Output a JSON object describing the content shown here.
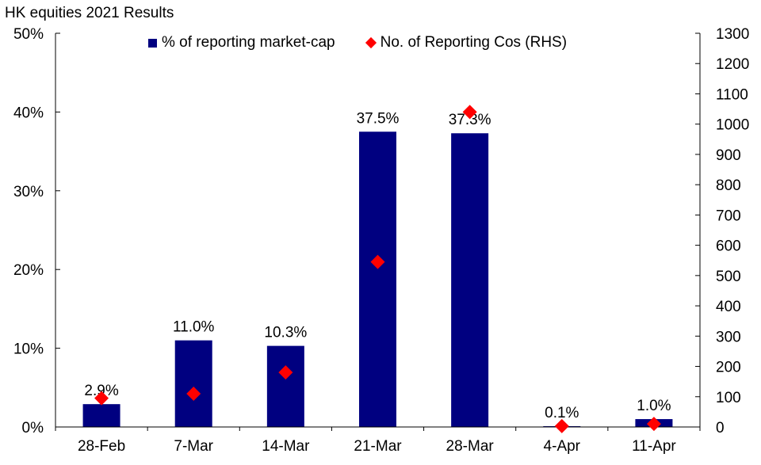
{
  "title": "HK equities 2021 Results",
  "legend": {
    "bar_label": "% of reporting market-cap",
    "marker_label": "No. of Reporting Cos (RHS)"
  },
  "colors": {
    "bar": "#000080",
    "marker": "#ff0000",
    "axis": "#000000"
  },
  "chart_data": {
    "type": "bar",
    "categories": [
      "28-Feb",
      "7-Mar",
      "14-Mar",
      "21-Mar",
      "28-Mar",
      "4-Apr",
      "11-Apr"
    ],
    "series": [
      {
        "name": "% of reporting market-cap",
        "type": "bar",
        "axis": "left",
        "values": [
          2.9,
          11.0,
          10.3,
          37.5,
          37.3,
          0.1,
          1.0
        ],
        "labels": [
          "2.9%",
          "11.0%",
          "10.3%",
          "37.5%",
          "37.3%",
          "0.1%",
          "1.0%"
        ]
      },
      {
        "name": "No. of Reporting Cos (RHS)",
        "type": "scatter",
        "marker": "diamond",
        "axis": "right",
        "values": [
          95,
          110,
          180,
          545,
          1040,
          3,
          10
        ]
      }
    ],
    "y_left": {
      "range": [
        0,
        50
      ],
      "ticks": [
        0,
        10,
        20,
        30,
        40,
        50
      ],
      "tick_labels": [
        "0%",
        "10%",
        "20%",
        "30%",
        "40%",
        "50%"
      ]
    },
    "y_right": {
      "range": [
        0,
        1300
      ],
      "ticks": [
        0,
        100,
        200,
        300,
        400,
        500,
        600,
        700,
        800,
        900,
        1000,
        1100,
        1200,
        1300
      ],
      "tick_labels": [
        "0",
        "100",
        "200",
        "300",
        "400",
        "500",
        "600",
        "700",
        "800",
        "900",
        "1000",
        "1100",
        "1200",
        "1300"
      ]
    },
    "grid": false,
    "legend_position": "top"
  }
}
